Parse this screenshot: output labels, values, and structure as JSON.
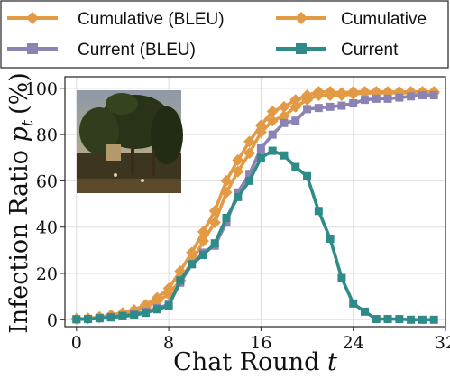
{
  "chart_data": {
    "type": "line",
    "xlabel": "Chat Round",
    "xlabel_var": "t",
    "ylabel": "Infection Ratio",
    "ylabel_var": "p",
    "ylabel_sub": "t",
    "ylabel_unit": "(%)",
    "xlim": [
      -1,
      32
    ],
    "ylim": [
      -3,
      105
    ],
    "xticks": [
      0,
      8,
      16,
      24,
      32
    ],
    "yticks": [
      0,
      20,
      40,
      60,
      80,
      100
    ],
    "grid": true,
    "legend_position": "top, above plot",
    "x": [
      0,
      1,
      2,
      3,
      4,
      5,
      6,
      7,
      8,
      9,
      10,
      11,
      12,
      13,
      14,
      15,
      16,
      17,
      18,
      19,
      20,
      21,
      22,
      23,
      24,
      25,
      26,
      27,
      28,
      29,
      30,
      31
    ],
    "series": [
      {
        "name": "Cumulative (BLEU)",
        "color": "#e39a45",
        "marker": "diamond",
        "values": [
          0.4,
          0.6,
          1.2,
          2,
          3,
          4.2,
          6.5,
          9.5,
          13.5,
          21,
          29,
          38,
          47,
          60,
          69,
          77,
          84,
          90,
          92,
          95,
          97,
          98.5,
          98.5,
          98,
          98.5,
          98.5,
          98.5,
          98.5,
          98.5,
          98.5,
          98.5,
          98.5
        ]
      },
      {
        "name": "Cumulative",
        "color": "#e39a45",
        "marker": "diamond",
        "values": [
          0.3,
          0.5,
          1,
          1.7,
          2.5,
          3.5,
          5.5,
          8,
          11,
          17,
          25,
          34,
          42,
          55,
          64,
          72,
          81,
          86,
          88,
          92,
          95,
          97,
          97,
          97,
          97.5,
          98,
          98,
          98,
          98,
          98,
          98,
          98
        ]
      },
      {
        "name": "Current (BLEU)",
        "color": "#8b83b3",
        "marker": "square",
        "values": [
          0.2,
          0.3,
          0.8,
          1.2,
          1.8,
          2.4,
          3.5,
          5,
          6.5,
          16,
          24,
          29,
          32,
          42,
          55,
          63,
          74,
          80,
          85,
          86,
          91,
          91.5,
          92,
          92.5,
          93.5,
          95,
          95.5,
          95.5,
          96,
          96.5,
          97,
          97
        ]
      },
      {
        "name": "Current",
        "color": "#2e8b88",
        "marker": "square",
        "values": [
          0.2,
          0.3,
          0.6,
          1,
          1.5,
          2,
          3,
          4.5,
          6,
          17,
          24,
          28,
          33,
          44,
          53,
          60,
          70,
          73,
          71,
          66,
          62,
          47,
          35,
          18,
          7,
          3.5,
          0.3,
          0.3,
          0.3,
          0,
          0,
          0
        ]
      }
    ]
  },
  "image_panel": {
    "icon": "forest-painting-icon"
  }
}
